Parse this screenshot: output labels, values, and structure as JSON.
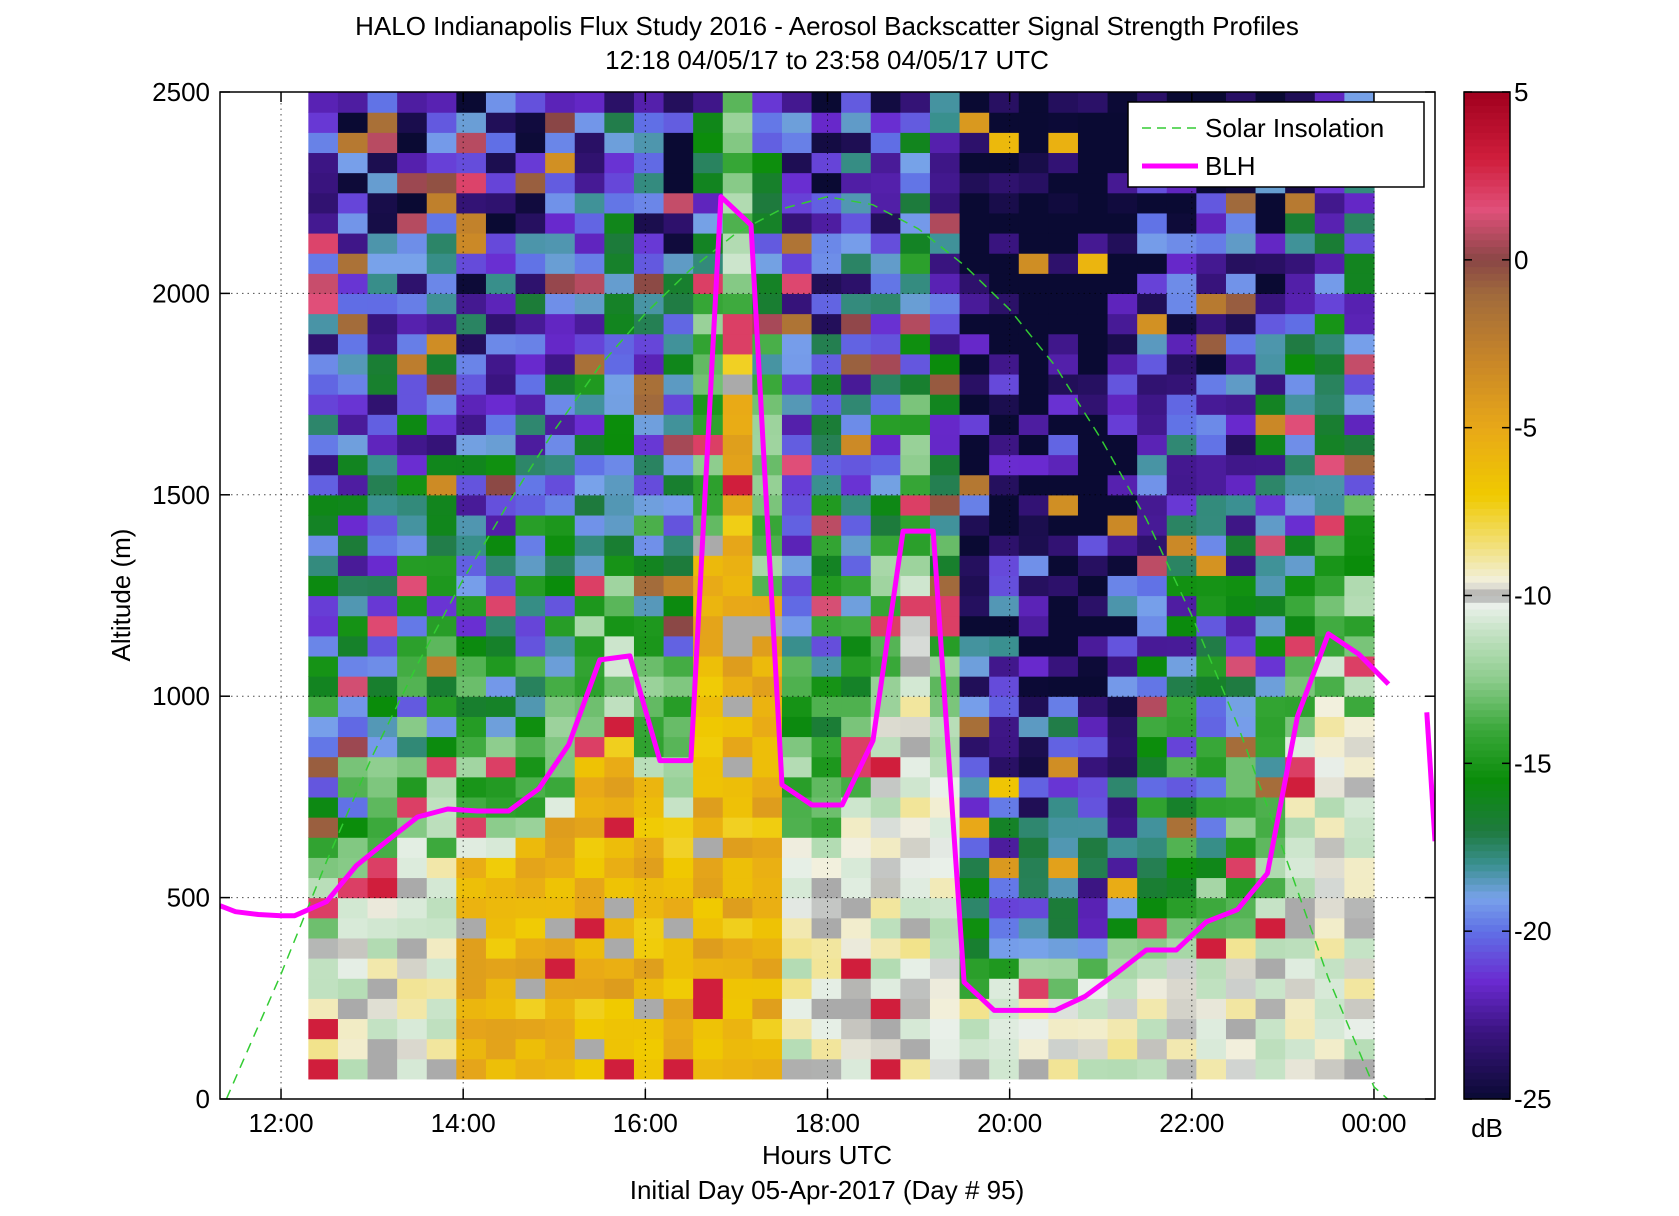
{
  "chart_data": {
    "type": "heatmap",
    "title": "HALO Indianapolis Flux Study 2016 - Aerosol Backscatter Signal Strength Profiles",
    "subtitle": "12:18 04/05/17 to 23:58 04/05/17  UTC",
    "xlabel": "Hours UTC",
    "xlabel2": "Initial Day 05-Apr-2017 (Day # 95)",
    "ylabel": "Altitude (m)",
    "x_range_hours": [
      11.33,
      24.67
    ],
    "ylim": [
      0,
      2500
    ],
    "x_ticks": [
      {
        "hour": 12,
        "label": "12:00"
      },
      {
        "hour": 14,
        "label": "14:00"
      },
      {
        "hour": 16,
        "label": "16:00"
      },
      {
        "hour": 18,
        "label": "18:00"
      },
      {
        "hour": 20,
        "label": "20:00"
      },
      {
        "hour": 22,
        "label": "22:00"
      },
      {
        "hour": 24,
        "label": "00:00"
      }
    ],
    "y_ticks": [
      {
        "value": 0,
        "label": "0"
      },
      {
        "value": 500,
        "label": "500"
      },
      {
        "value": 1000,
        "label": "1000"
      },
      {
        "value": 1500,
        "label": "1500"
      },
      {
        "value": 2000,
        "label": "2000"
      },
      {
        "value": 2500,
        "label": "2500"
      }
    ],
    "grid": true,
    "heatmap": {
      "time_start_hour": 12.3,
      "time_end_hour": 24.0,
      "n_columns": 36,
      "altitude_start_m": 50,
      "altitude_end_m": 2500,
      "n_rows": 49,
      "units": "dB"
    },
    "colorbar": {
      "min": -25,
      "max": 5,
      "units_label": "dB",
      "ticks": [
        {
          "value": 5,
          "label": "5"
        },
        {
          "value": 0,
          "label": "0"
        },
        {
          "value": -5,
          "label": "-5"
        },
        {
          "value": -10,
          "label": "-10"
        },
        {
          "value": -15,
          "label": "-15"
        },
        {
          "value": -20,
          "label": "-20"
        },
        {
          "value": -25,
          "label": "-25"
        }
      ],
      "stops": [
        {
          "v": -25,
          "color": "#0a0a33"
        },
        {
          "v": -23,
          "color": "#3a1480"
        },
        {
          "v": -21.5,
          "color": "#6a2ad0"
        },
        {
          "v": -20,
          "color": "#6070e6"
        },
        {
          "v": -19,
          "color": "#78a2ea"
        },
        {
          "v": -18,
          "color": "#3a9090"
        },
        {
          "v": -17,
          "color": "#1e7a3e"
        },
        {
          "v": -15.5,
          "color": "#0a8c0a"
        },
        {
          "v": -14,
          "color": "#3aa83a"
        },
        {
          "v": -12.5,
          "color": "#8ccc8c"
        },
        {
          "v": -11,
          "color": "#c8e4c8"
        },
        {
          "v": -10.3,
          "color": "#eaf0ea"
        },
        {
          "v": -10,
          "color": "#aaaaaa"
        },
        {
          "v": -9.6,
          "color": "#f2f0e0"
        },
        {
          "v": -8.5,
          "color": "#f2e07a"
        },
        {
          "v": -7,
          "color": "#f0ca00"
        },
        {
          "v": -5,
          "color": "#e8a818"
        },
        {
          "v": -3,
          "color": "#c88628"
        },
        {
          "v": -1,
          "color": "#a06a3c"
        },
        {
          "v": 0,
          "color": "#8a4646"
        },
        {
          "v": 1.5,
          "color": "#e0507a"
        },
        {
          "v": 3,
          "color": "#d01e3c"
        },
        {
          "v": 5,
          "color": "#a0001e"
        }
      ]
    },
    "series": [
      {
        "name": "Solar Insolation",
        "style": "dashed",
        "color": "#33cc33",
        "x": [
          11.4,
          12.0,
          12.5,
          13.0,
          13.5,
          14.0,
          14.5,
          15.0,
          15.5,
          16.0,
          16.5,
          17.0,
          17.5,
          18.0,
          18.5,
          19.0,
          19.5,
          20.0,
          20.5,
          21.0,
          21.5,
          22.0,
          22.5,
          23.0,
          23.5,
          24.0,
          24.15
        ],
        "y": [
          0,
          310,
          590,
          850,
          1080,
          1290,
          1480,
          1660,
          1820,
          1950,
          2060,
          2150,
          2210,
          2240,
          2220,
          2160,
          2070,
          1960,
          1820,
          1640,
          1440,
          1200,
          930,
          620,
          300,
          30,
          0
        ]
      },
      {
        "name": "BLH",
        "style": "solid",
        "color": "#ff00ff",
        "x": [
          11.33,
          11.5,
          11.75,
          12.0,
          12.15,
          12.5,
          12.83,
          13.16,
          13.5,
          13.83,
          14.16,
          14.5,
          14.83,
          15.16,
          15.5,
          15.83,
          16.16,
          16.5,
          16.83,
          17.16,
          17.5,
          17.83,
          18.16,
          18.5,
          18.83,
          19.16,
          19.5,
          19.83,
          20.16,
          20.5,
          20.83,
          21.16,
          21.5,
          21.83,
          22.16,
          22.5,
          22.83,
          23.16,
          23.5,
          23.83,
          24.16
        ],
        "y": [
          480,
          465,
          458,
          455,
          455,
          490,
          580,
          640,
          700,
          720,
          715,
          715,
          770,
          880,
          1090,
          1100,
          840,
          840,
          2240,
          2170,
          780,
          730,
          730,
          890,
          1410,
          1410,
          290,
          220,
          220,
          220,
          255,
          310,
          370,
          370,
          440,
          470,
          560,
          950,
          1155,
          1105,
          1030
        ],
        "x2": [
          24.58,
          24.67
        ],
        "y2": [
          960,
          640
        ]
      }
    ],
    "legend": {
      "placement": "top-right",
      "entries": [
        "Solar Insolation",
        "BLH"
      ]
    }
  }
}
